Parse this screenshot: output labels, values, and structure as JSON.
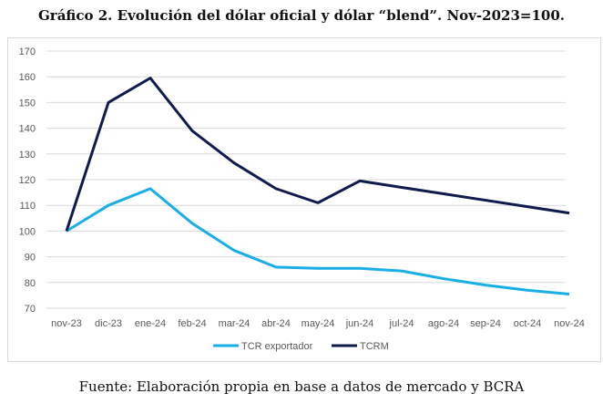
{
  "chart_data": {
    "type": "line",
    "title": "Gráfico 2. Evolución del dólar oficial y dólar “blend”. Nov-2023=100.",
    "source": "Fuente: Elaboración propia en base a datos de mercado y BCRA",
    "categories": [
      "nov-23",
      "dic-23",
      "ene-24",
      "feb-24",
      "mar-24",
      "abr-24",
      "may-24",
      "jun-24",
      "jul-24",
      "ago-24",
      "sep-24",
      "oct-24",
      "nov-24"
    ],
    "ylim": [
      70,
      170
    ],
    "yticks": [
      70,
      80,
      90,
      100,
      110,
      120,
      130,
      140,
      150,
      160,
      170
    ],
    "grid": true,
    "legend": "bottom",
    "series": [
      {
        "name": "TCR exportador",
        "color": "#1aaee6",
        "values": [
          100,
          110,
          116.5,
          103,
          92.5,
          86,
          85.5,
          85.5,
          84.5,
          81.5,
          79,
          77,
          75.5
        ]
      },
      {
        "name": "TCRM",
        "color": "#0f1a4d",
        "values": [
          100,
          150,
          159.5,
          139,
          126.5,
          116.5,
          111,
          119.5,
          117,
          114.5,
          112,
          109.5,
          107
        ]
      }
    ]
  }
}
